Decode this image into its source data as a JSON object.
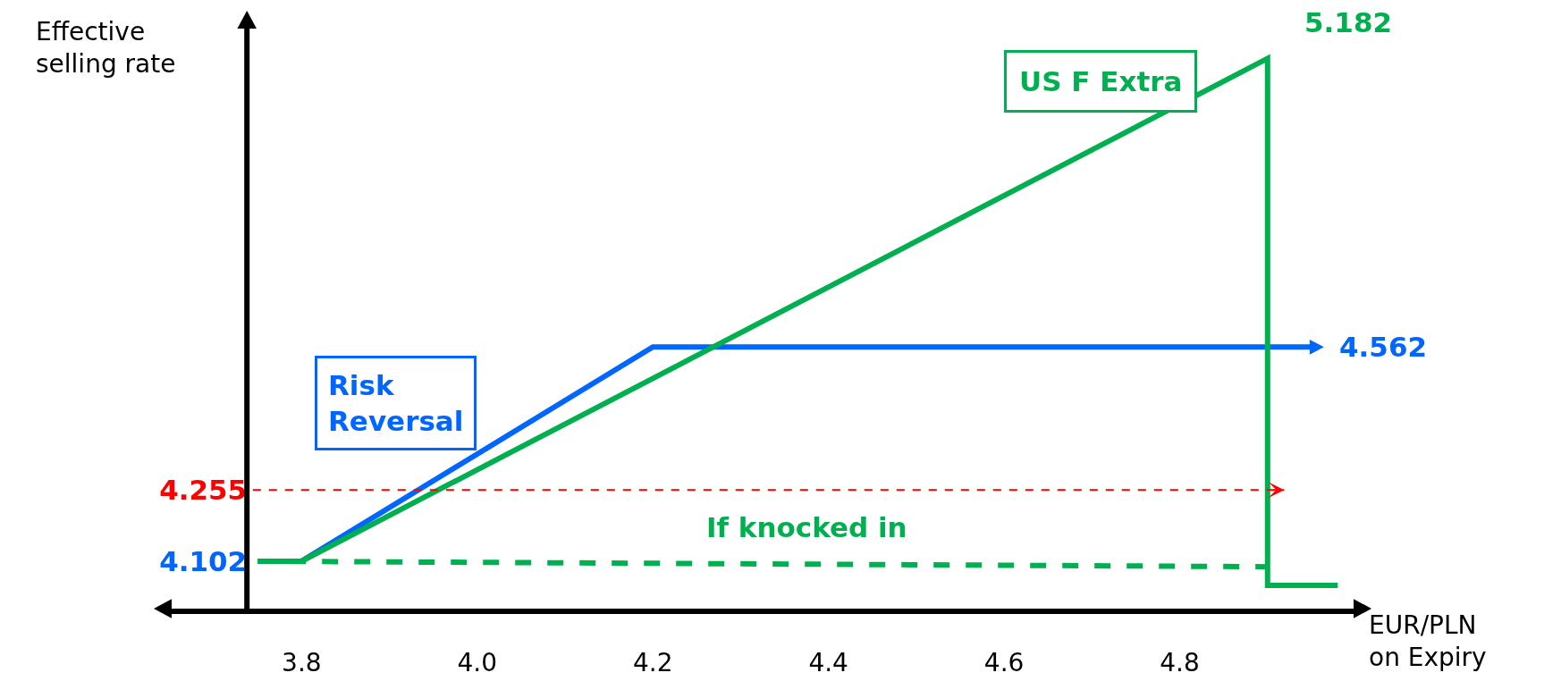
{
  "chart_data": {
    "type": "line",
    "xlabel": "EUR/PLN on Expiry",
    "ylabel": "Effective selling rate",
    "xlim": [
      3.65,
      5.0
    ],
    "xticks": [
      3.8,
      {
        "value": 4.0,
        "label": "4.0"
      },
      4.2,
      4.4,
      4.6,
      4.8
    ],
    "ylim": [
      4.0,
      5.25
    ],
    "yticks": [
      4.102,
      4.255
    ],
    "series": [
      {
        "name": "Risk Reversal",
        "color": "#0066ff",
        "x": [
          3.8,
          4.2,
          4.95
        ],
        "values": [
          4.102,
          4.562,
          4.562
        ]
      },
      {
        "name": "US F Extra",
        "color": "#00b050",
        "x": [
          3.75,
          3.8,
          4.9,
          4.9,
          4.98
        ],
        "values": [
          4.102,
          4.102,
          5.182,
          4.05,
          4.05
        ]
      },
      {
        "name": "If knocked in",
        "color": "#00b050",
        "line_style": "dashed",
        "x": [
          3.75,
          4.9
        ],
        "values": [
          4.102,
          4.09
        ]
      }
    ],
    "ref_lines": [
      {
        "axis": "y",
        "value": 4.255,
        "color": "#ff0000",
        "line_style": "dashed"
      }
    ],
    "annotations": [
      {
        "text": "4.562",
        "x": 4.95,
        "y": 4.562
      },
      {
        "text": "5.182",
        "x": 4.9,
        "y": 5.182
      }
    ],
    "grid": false,
    "legend": false
  }
}
